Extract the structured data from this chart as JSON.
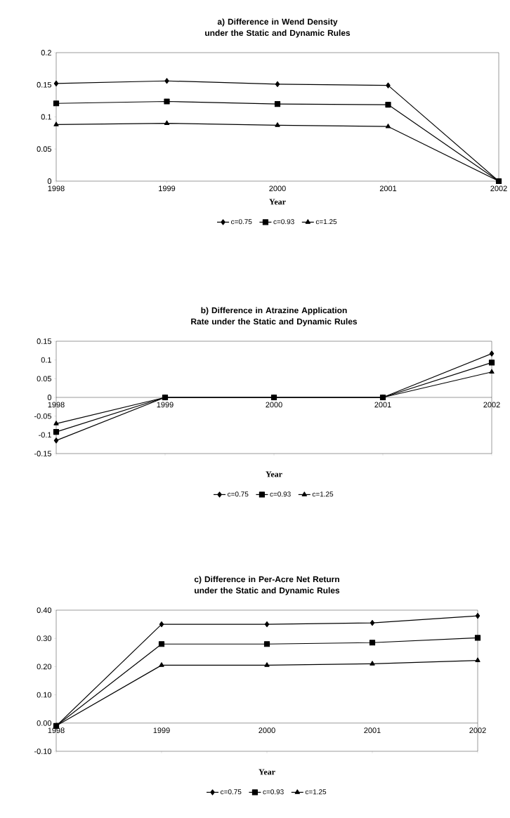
{
  "chart_data": [
    {
      "type": "line",
      "title": "a) Difference in Wend Density under the Static and Dynamic Rules",
      "xlabel": "Year",
      "categories": [
        "1998",
        "1999",
        "2000",
        "2001",
        "2002"
      ],
      "ylim": [
        0,
        0.2
      ],
      "yticks": [
        0,
        0.05,
        0.1,
        0.15,
        0.2
      ],
      "legend": "bottom",
      "series": [
        {
          "name": "c=0.75",
          "color": "#000000",
          "marker": "diamond",
          "values": [
            0.152,
            0.156,
            0.151,
            0.149,
            0
          ]
        },
        {
          "name": "c=0.93",
          "color": "#000000",
          "marker": "square",
          "values": [
            0.121,
            0.124,
            0.12,
            0.119,
            0
          ]
        },
        {
          "name": "c=1.25",
          "color": "#000000",
          "marker": "triangle",
          "values": [
            0.088,
            0.09,
            0.087,
            0.085,
            0
          ]
        }
      ]
    },
    {
      "type": "line",
      "title": "b) Difference in Atrazine Application Rate under the Static and Dynamic Rules",
      "xlabel": "Year",
      "categories": [
        "1998",
        "1999",
        "2000",
        "2001",
        "2002"
      ],
      "ylim": [
        -0.15,
        0.15
      ],
      "yticks": [
        -0.15,
        -0.1,
        -0.05,
        0,
        0.05,
        0.1,
        0.15
      ],
      "legend": "bottom",
      "series": [
        {
          "name": "c=0.75",
          "color": "#000000",
          "marker": "diamond",
          "values": [
            -0.115,
            0,
            0,
            0,
            0.117
          ]
        },
        {
          "name": "c=0.93",
          "color": "#000000",
          "marker": "square",
          "values": [
            -0.092,
            0,
            0,
            0,
            0.093
          ]
        },
        {
          "name": "c=1.25",
          "color": "#000000",
          "marker": "triangle",
          "values": [
            -0.07,
            0,
            0,
            0,
            0.068
          ]
        }
      ]
    },
    {
      "type": "line",
      "title": "c) Difference in Per-Acre Net Return under the Static and Dynamic Rules",
      "xlabel": "Year",
      "categories": [
        "1998",
        "1999",
        "2000",
        "2001",
        "2002"
      ],
      "ylim": [
        -0.1,
        0.4
      ],
      "yticks": [
        {
          "value": -0.1,
          "label": "-0.10"
        },
        {
          "value": 0,
          "label": "0.00"
        },
        {
          "value": 0.1,
          "label": "0.10"
        },
        {
          "value": 0.2,
          "label": "0.20"
        },
        {
          "value": 0.3,
          "label": "0.30"
        },
        {
          "value": 0.4,
          "label": "0.40"
        }
      ],
      "legend": "bottom",
      "series": [
        {
          "name": "c=0.75",
          "color": "#000000",
          "marker": "diamond",
          "values": [
            -0.01,
            0.35,
            0.35,
            0.355,
            0.38
          ]
        },
        {
          "name": "c=0.93",
          "color": "#000000",
          "marker": "square",
          "values": [
            -0.01,
            0.28,
            0.28,
            0.285,
            0.302
          ]
        },
        {
          "name": "c=1.25",
          "color": "#000000",
          "marker": "triangle",
          "values": [
            -0.01,
            0.205,
            0.205,
            0.21,
            0.222
          ]
        }
      ]
    }
  ]
}
